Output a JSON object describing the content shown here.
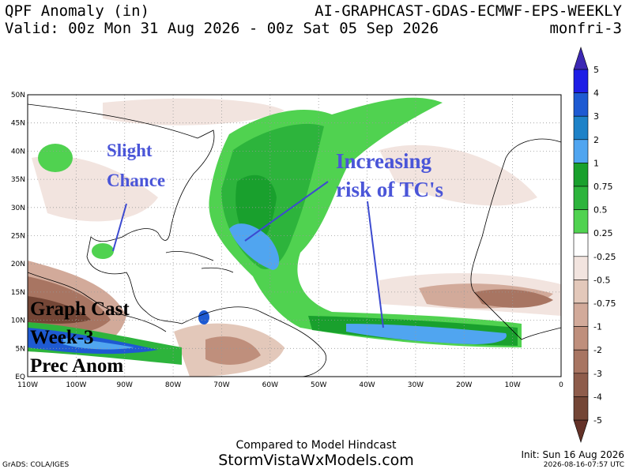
{
  "header": {
    "title": "QPF Anomaly (in)",
    "model": "AI-GRAPHCAST-GDAS-ECMWF-EPS-WEEKLY",
    "valid": "Valid: 00z Mon 31 Aug 2026 - 00z Sat 05 Sep 2026",
    "period": "monfri-3"
  },
  "map": {
    "lat_labels": [
      "50N",
      "45N",
      "40N",
      "35N",
      "30N",
      "25N",
      "20N",
      "15N",
      "10N",
      "5N",
      "EQ"
    ],
    "lon_labels": [
      "110W",
      "100W",
      "90W",
      "80W",
      "70W",
      "60W",
      "50W",
      "40W",
      "30W",
      "20W",
      "10W",
      "0"
    ]
  },
  "annotations": {
    "slight": [
      "Slight",
      "Chance"
    ],
    "tc": [
      "Increasing",
      "risk of TC's"
    ],
    "label": [
      "Graph Cast",
      "Week-3",
      "Prec Anom"
    ]
  },
  "colorbar": {
    "labels": [
      "5",
      "4",
      "3",
      "2",
      "1",
      "0.75",
      "0.5",
      "0.25",
      "-0.25",
      "-0.5",
      "-0.75",
      "-1",
      "-2",
      "-3",
      "-4",
      "-5"
    ],
    "colors": [
      "#1e1ee6",
      "#1e5ad2",
      "#1e82c8",
      "#50a5f0",
      "#19a02d",
      "#2db43c",
      "#50d250",
      "#ffffff",
      "#f2e4df",
      "#e3c8ba",
      "#d2aa9a",
      "#bf8f7c",
      "#a87562",
      "#8e5c4b",
      "#744636"
    ],
    "top_color": "#3c28b4",
    "bottom_color": "#643228"
  },
  "footer": {
    "compare": "Compared to Model Hindcast",
    "site": "StormVistaWxModels.com",
    "init": "Init: Sun 16 Aug 2026",
    "grads": "GrADS: COLA/IGES",
    "stamp": "2026-08-16-07:57 UTC"
  }
}
